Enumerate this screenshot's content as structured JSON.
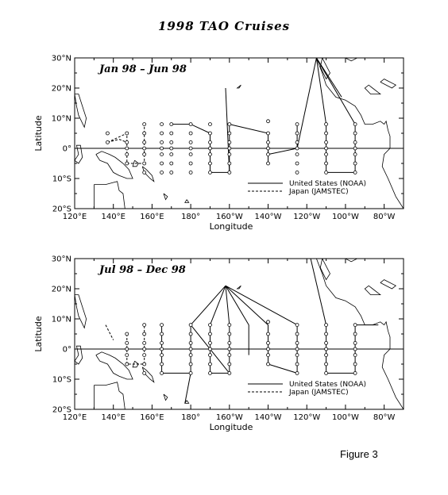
{
  "title": "1998 TAO Cruises",
  "caption": "Figure 3",
  "axes": {
    "xlabel": "Longitude",
    "ylabel": "Latitude",
    "lon_ticks": [
      {
        "lon": 120,
        "label": "120°E"
      },
      {
        "lon": 140,
        "label": "140°E"
      },
      {
        "lon": 160,
        "label": "160°E"
      },
      {
        "lon": 180,
        "label": "180°"
      },
      {
        "lon": 200,
        "label": "160°W"
      },
      {
        "lon": 220,
        "label": "140°W"
      },
      {
        "lon": 240,
        "label": "120°W"
      },
      {
        "lon": 260,
        "label": "100°W"
      },
      {
        "lon": 280,
        "label": "80°W"
      }
    ],
    "lat_ticks": [
      {
        "lat": 30,
        "label": "30°N"
      },
      {
        "lat": 20,
        "label": "20°N"
      },
      {
        "lat": 10,
        "label": "10°N"
      },
      {
        "lat": 0,
        "label": "0°"
      },
      {
        "lat": -10,
        "label": "10°S"
      },
      {
        "lat": -20,
        "label": "20°S"
      }
    ],
    "lon_range": [
      120,
      290
    ],
    "lat_range": [
      -20,
      30
    ]
  },
  "legend": {
    "noaa": "United States (NOAA)",
    "jamstec": "Japan (JAMSTEC)"
  },
  "panels": [
    {
      "period": "Jan 98 – Jun 98",
      "stations": [
        [
          137,
          5
        ],
        [
          137,
          2
        ],
        [
          147,
          5
        ],
        [
          147,
          2
        ],
        [
          147,
          0
        ],
        [
          147,
          -2
        ],
        [
          147,
          -5
        ],
        [
          156,
          8
        ],
        [
          156,
          5
        ],
        [
          156,
          2
        ],
        [
          156,
          0
        ],
        [
          156,
          -2
        ],
        [
          156,
          -5
        ],
        [
          156,
          -8
        ],
        [
          165,
          8
        ],
        [
          165,
          5
        ],
        [
          165,
          2
        ],
        [
          165,
          0
        ],
        [
          165,
          -2
        ],
        [
          165,
          -5
        ],
        [
          165,
          -8
        ],
        [
          170,
          8
        ],
        [
          170,
          5
        ],
        [
          170,
          2
        ],
        [
          170,
          0
        ],
        [
          170,
          -2
        ],
        [
          170,
          -5
        ],
        [
          170,
          -8
        ],
        [
          180,
          8
        ],
        [
          180,
          5
        ],
        [
          180,
          2
        ],
        [
          180,
          0
        ],
        [
          180,
          -2
        ],
        [
          180,
          -5
        ],
        [
          180,
          -8
        ],
        [
          190,
          8
        ],
        [
          190,
          5
        ],
        [
          190,
          2
        ],
        [
          190,
          0
        ],
        [
          190,
          -2
        ],
        [
          190,
          -5
        ],
        [
          190,
          -8
        ],
        [
          200,
          8
        ],
        [
          200,
          5
        ],
        [
          200,
          2
        ],
        [
          200,
          0
        ],
        [
          200,
          -2
        ],
        [
          200,
          -5
        ],
        [
          200,
          -8
        ],
        [
          220,
          9
        ],
        [
          220,
          5
        ],
        [
          220,
          2
        ],
        [
          220,
          0
        ],
        [
          220,
          -2
        ],
        [
          220,
          -5
        ],
        [
          235,
          8
        ],
        [
          235,
          5
        ],
        [
          235,
          2
        ],
        [
          235,
          0
        ],
        [
          235,
          -2
        ],
        [
          235,
          -5
        ],
        [
          235,
          -8
        ],
        [
          250,
          8
        ],
        [
          250,
          5
        ],
        [
          250,
          2
        ],
        [
          250,
          0
        ],
        [
          250,
          -2
        ],
        [
          250,
          -5
        ],
        [
          250,
          -8
        ],
        [
          265,
          8
        ],
        [
          265,
          5
        ],
        [
          265,
          2
        ],
        [
          265,
          0
        ],
        [
          265,
          -2
        ],
        [
          265,
          -5
        ],
        [
          265,
          -8
        ]
      ],
      "noaa_tracks": [
        [
          [
            170,
            8
          ],
          [
            180,
            8
          ],
          [
            190,
            5
          ],
          [
            190,
            -8
          ],
          [
            200,
            -8
          ],
          [
            200,
            8
          ]
        ],
        [
          [
            198,
            20
          ],
          [
            200,
            -8
          ]
        ],
        [
          [
            200,
            8
          ],
          [
            220,
            5
          ],
          [
            220,
            -5
          ]
        ],
        [
          [
            220,
            -2
          ],
          [
            235,
            0
          ],
          [
            235,
            8
          ]
        ],
        [
          [
            235,
            0
          ],
          [
            245,
            30
          ],
          [
            250,
            8
          ],
          [
            250,
            -8
          ],
          [
            265,
            -8
          ],
          [
            265,
            8
          ]
        ],
        [
          [
            245,
            30
          ],
          [
            265,
            8
          ]
        ],
        [
          [
            245,
            30
          ],
          [
            258,
            17
          ]
        ]
      ],
      "jamstec_tracks": [
        [
          [
            137,
            2
          ],
          [
            147,
            5
          ],
          [
            147,
            -5
          ],
          [
            156,
            -5
          ],
          [
            156,
            8
          ]
        ],
        [
          [
            137,
            2
          ],
          [
            143,
            3
          ],
          [
            147,
            2
          ]
        ]
      ]
    },
    {
      "period": "Jul 98 – Dec 98",
      "stations": [
        [
          147,
          5
        ],
        [
          147,
          2
        ],
        [
          147,
          0
        ],
        [
          147,
          -2
        ],
        [
          147,
          -5
        ],
        [
          156,
          8
        ],
        [
          156,
          5
        ],
        [
          156,
          2
        ],
        [
          156,
          0
        ],
        [
          156,
          -2
        ],
        [
          156,
          -5
        ],
        [
          156,
          -8
        ],
        [
          165,
          8
        ],
        [
          165,
          5
        ],
        [
          165,
          2
        ],
        [
          165,
          0
        ],
        [
          165,
          -2
        ],
        [
          165,
          -5
        ],
        [
          165,
          -8
        ],
        [
          180,
          8
        ],
        [
          180,
          5
        ],
        [
          180,
          2
        ],
        [
          180,
          0
        ],
        [
          180,
          -2
        ],
        [
          180,
          -5
        ],
        [
          180,
          -8
        ],
        [
          190,
          8
        ],
        [
          190,
          5
        ],
        [
          190,
          2
        ],
        [
          190,
          0
        ],
        [
          190,
          -2
        ],
        [
          190,
          -5
        ],
        [
          190,
          -8
        ],
        [
          200,
          8
        ],
        [
          200,
          5
        ],
        [
          200,
          2
        ],
        [
          200,
          0
        ],
        [
          200,
          -2
        ],
        [
          200,
          -5
        ],
        [
          200,
          -8
        ],
        [
          220,
          9
        ],
        [
          220,
          5
        ],
        [
          220,
          2
        ],
        [
          220,
          0
        ],
        [
          220,
          -2
        ],
        [
          220,
          -5
        ],
        [
          235,
          8
        ],
        [
          235,
          5
        ],
        [
          235,
          2
        ],
        [
          235,
          0
        ],
        [
          235,
          -2
        ],
        [
          235,
          -5
        ],
        [
          235,
          -8
        ],
        [
          250,
          8
        ],
        [
          250,
          5
        ],
        [
          250,
          2
        ],
        [
          250,
          0
        ],
        [
          250,
          -2
        ],
        [
          250,
          -5
        ],
        [
          250,
          -8
        ],
        [
          265,
          8
        ],
        [
          265,
          5
        ],
        [
          265,
          2
        ],
        [
          265,
          0
        ],
        [
          265,
          -2
        ],
        [
          265,
          -5
        ],
        [
          265,
          -8
        ]
      ],
      "noaa_tracks": [
        [
          [
            165,
            8
          ],
          [
            165,
            -8
          ],
          [
            180,
            -8
          ],
          [
            180,
            8
          ],
          [
            198,
            21
          ],
          [
            190,
            8
          ],
          [
            190,
            -8
          ],
          [
            200,
            -8
          ],
          [
            200,
            8
          ],
          [
            198,
            21
          ]
        ],
        [
          [
            198,
            21
          ],
          [
            220,
            8
          ],
          [
            220,
            -5
          ],
          [
            235,
            -8
          ],
          [
            235,
            8
          ],
          [
            198,
            21
          ]
        ],
        [
          [
            198,
            21
          ],
          [
            210,
            8
          ],
          [
            210,
            -2
          ]
        ],
        [
          [
            180,
            8
          ],
          [
            200,
            -8
          ]
        ],
        [
          [
            180,
            -8
          ],
          [
            177,
            -18
          ]
        ],
        [
          [
            242,
            30
          ],
          [
            250,
            8
          ],
          [
            250,
            -8
          ],
          [
            265,
            -8
          ],
          [
            265,
            8
          ],
          [
            277,
            8
          ]
        ]
      ],
      "jamstec_tracks": [
        [
          [
            147,
            5
          ],
          [
            147,
            -5
          ],
          [
            156,
            -5
          ],
          [
            156,
            8
          ]
        ],
        [
          [
            136,
            8
          ],
          [
            140,
            3
          ]
        ]
      ]
    }
  ]
}
